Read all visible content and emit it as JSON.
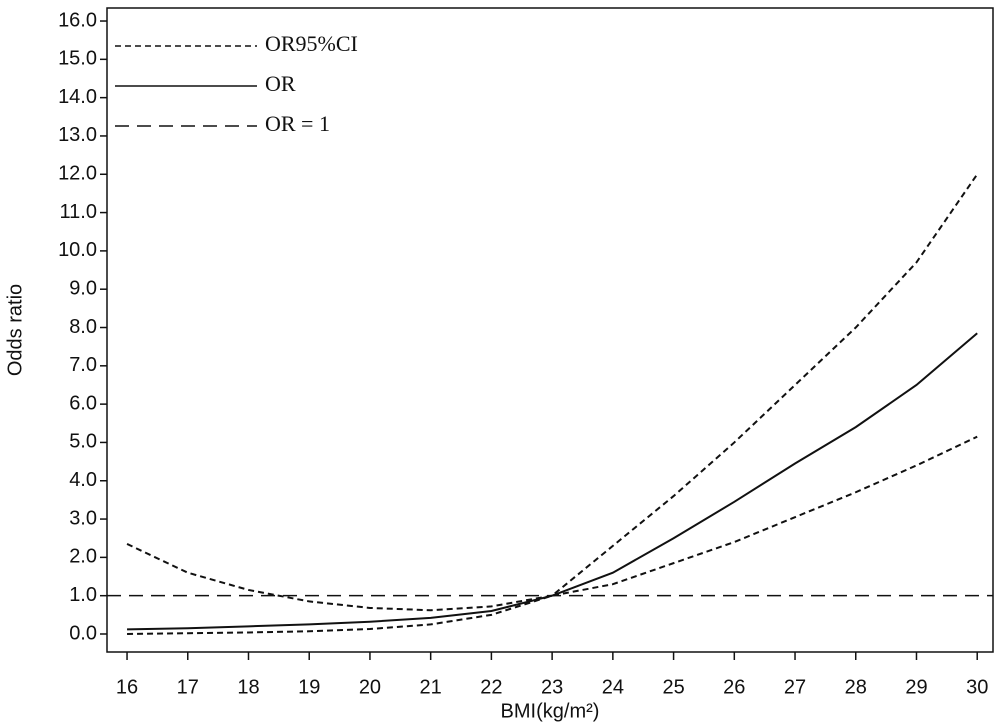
{
  "chart_data": {
    "type": "line",
    "xlabel": "BMI(kg/m²)",
    "ylabel": "Odds ratio",
    "x": [
      16,
      17,
      18,
      19,
      20,
      21,
      22,
      23,
      24,
      25,
      26,
      27,
      28,
      29,
      30
    ],
    "series": [
      {
        "name": "OR95%CI",
        "color": "#111111",
        "dash": "6,4",
        "upper": [
          2.35,
          1.6,
          1.15,
          0.85,
          0.68,
          0.62,
          0.72,
          1.0,
          2.3,
          3.6,
          5.0,
          6.5,
          8.0,
          9.7,
          12.0
        ],
        "lower": [
          0.0,
          0.02,
          0.04,
          0.07,
          0.13,
          0.25,
          0.5,
          1.0,
          1.3,
          1.85,
          2.4,
          3.05,
          3.7,
          4.4,
          5.15
        ]
      },
      {
        "name": "OR",
        "color": "#111111",
        "dash": "none",
        "values": [
          0.12,
          0.15,
          0.2,
          0.25,
          0.32,
          0.42,
          0.6,
          1.0,
          1.6,
          2.5,
          3.45,
          4.45,
          5.4,
          6.5,
          7.85
        ]
      },
      {
        "name": "OR = 1",
        "color": "#111111",
        "dash": "14,8",
        "y": 1
      }
    ],
    "xlim": [
      15.67,
      30.26
    ],
    "ylim": [
      -0.47,
      16.34
    ],
    "xticks": [
      16,
      17,
      18,
      19,
      20,
      21,
      22,
      23,
      24,
      25,
      26,
      27,
      28,
      29,
      30
    ],
    "yticks": [
      {
        "value": 0,
        "label": "0.0"
      },
      {
        "value": 1,
        "label": "1.0"
      },
      {
        "value": 2,
        "label": "2.0"
      },
      {
        "value": 3,
        "label": "3.0"
      },
      {
        "value": 4,
        "label": "4.0"
      },
      {
        "value": 5,
        "label": "5.0"
      },
      {
        "value": 6,
        "label": "6.0"
      },
      {
        "value": 7,
        "label": "7.0"
      },
      {
        "value": 8,
        "label": "8.0"
      },
      {
        "value": 9,
        "label": "9.0"
      },
      {
        "value": 10,
        "label": "10.0"
      },
      {
        "value": 11,
        "label": "11.0"
      },
      {
        "value": 12,
        "label": "12.0"
      },
      {
        "value": 13,
        "label": "13.0"
      },
      {
        "value": 14,
        "label": "14.0"
      },
      {
        "value": 15,
        "label": "15.0"
      },
      {
        "value": 16,
        "label": "16.0"
      }
    ],
    "legend": "upper left"
  }
}
